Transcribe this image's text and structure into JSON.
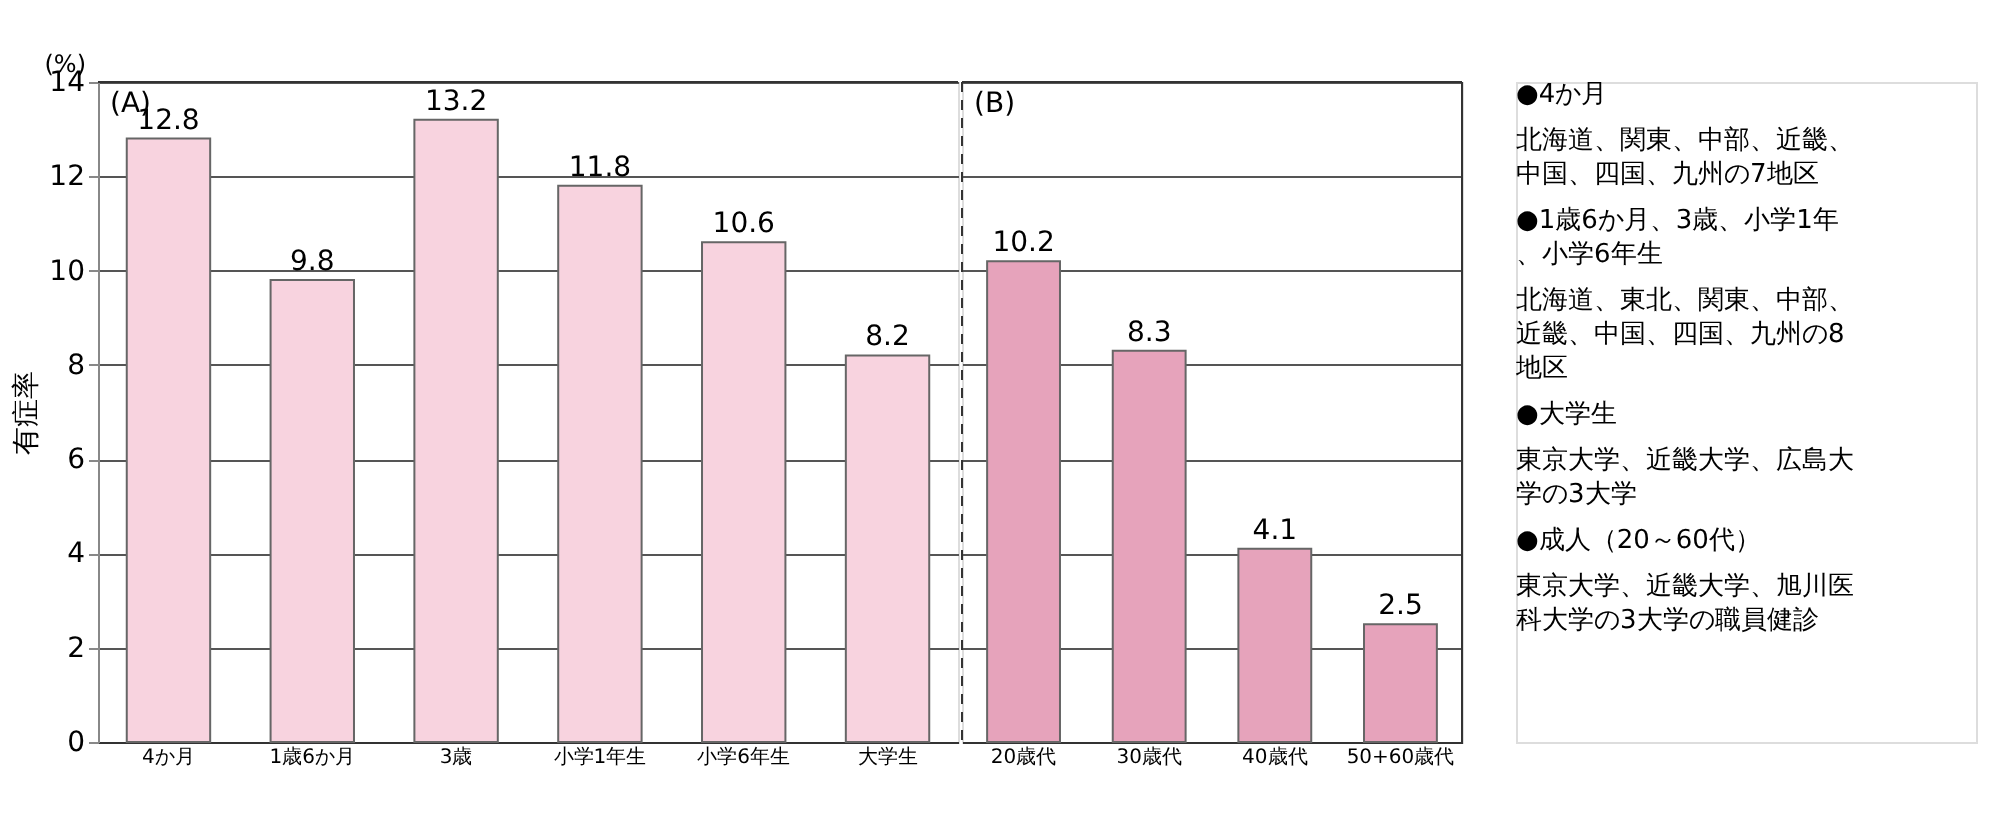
{
  "chart_data": [
    {
      "type": "bar",
      "title": "(A)",
      "ylabel": "有症率",
      "annotations": [
        "(%)"
      ],
      "categories": [
        "4か月",
        "1歳6か月",
        "3歳",
        "小学1年生",
        "小学6年生",
        "大学生"
      ],
      "values": [
        12.8,
        9.8,
        13.2,
        11.8,
        10.6,
        8.2
      ],
      "color": "#f8d3df",
      "data_labels": true,
      "ylim": [
        0,
        14
      ],
      "yticks": [
        0,
        2,
        4,
        6,
        8,
        10,
        12,
        14
      ],
      "grid": "y"
    },
    {
      "type": "bar",
      "title": "(B)",
      "categories": [
        "20歳代",
        "30歳代",
        "40歳代",
        "50+60歳代"
      ],
      "values": [
        10.2,
        8.3,
        4.1,
        2.5
      ],
      "color": "#e6a3bb",
      "data_labels": true,
      "ylim": [
        0,
        14
      ],
      "yticks": [
        0,
        2,
        4,
        6,
        8,
        10,
        12,
        14
      ],
      "grid": "y",
      "tick_labels": "x"
    },
    {
      "type": "other",
      "annotations": [
        "●4か月",
        "北海道、関東、中部、近畿、中国、四国、九州の7地区",
        "●1歳6か月、3歳、小学1年、小学6年生",
        "北海道、東北、関東、中部、近畿、中国、四国、九州の8地区",
        "●大学生",
        "東京大学、近畿大学、広島大学の3大学",
        "●成人（20～60代）",
        "東京大学、近畿大学、旭川医科大学の3大学の職員健診"
      ]
    }
  ]
}
